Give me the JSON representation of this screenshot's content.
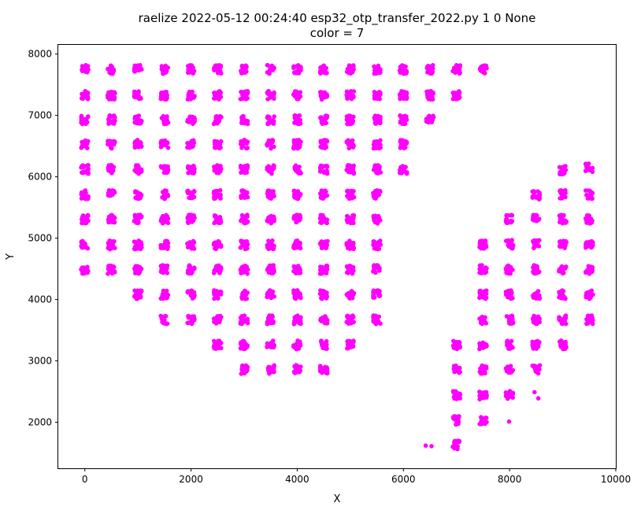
{
  "chart_data": {
    "type": "scatter",
    "title": "raelize 2022-05-12 00:24:40 esp32_otp_transfer_2022.py 1 0 None",
    "subtitle": "color = 7",
    "xlabel": "X",
    "ylabel": "Y",
    "xlim": [
      -500,
      10000
    ],
    "ylim": [
      1250,
      8150
    ],
    "xticks": [
      0,
      2000,
      4000,
      6000,
      8000,
      10000
    ],
    "xtick_labels": [
      "0",
      "2000",
      "4000",
      "6000",
      "8000",
      "10000"
    ],
    "yticks": [
      2000,
      3000,
      4000,
      5000,
      6000,
      7000,
      8000
    ],
    "ytick_labels": [
      "2000",
      "3000",
      "4000",
      "5000",
      "6000",
      "7000",
      "8000"
    ],
    "grid": false,
    "marker_color": "#ff00ff",
    "points_per_cluster": 20,
    "cluster_spread": 70,
    "series": [
      {
        "clusters": [
          [
            0,
            7750
          ],
          [
            500,
            7750
          ],
          [
            1000,
            7750
          ],
          [
            1500,
            7750
          ],
          [
            2000,
            7750
          ],
          [
            2500,
            7750
          ],
          [
            3000,
            7750
          ],
          [
            3500,
            7750
          ],
          [
            4000,
            7750
          ],
          [
            4500,
            7750
          ],
          [
            5000,
            7750
          ],
          [
            5500,
            7750
          ],
          [
            6000,
            7750
          ],
          [
            6500,
            7750
          ],
          [
            7000,
            7750
          ],
          [
            7500,
            7750
          ],
          [
            0,
            7330
          ],
          [
            500,
            7330
          ],
          [
            1000,
            7330
          ],
          [
            1500,
            7330
          ],
          [
            2000,
            7330
          ],
          [
            2500,
            7330
          ],
          [
            3000,
            7330
          ],
          [
            3500,
            7330
          ],
          [
            4000,
            7330
          ],
          [
            4500,
            7330
          ],
          [
            5000,
            7330
          ],
          [
            5500,
            7330
          ],
          [
            6000,
            7330
          ],
          [
            6500,
            7330
          ],
          [
            7000,
            7330
          ],
          [
            0,
            6930
          ],
          [
            500,
            6930
          ],
          [
            1000,
            6930
          ],
          [
            1500,
            6930
          ],
          [
            2000,
            6930
          ],
          [
            2500,
            6930
          ],
          [
            3000,
            6930
          ],
          [
            3500,
            6930
          ],
          [
            4000,
            6930
          ],
          [
            4500,
            6930
          ],
          [
            5000,
            6930
          ],
          [
            5500,
            6930
          ],
          [
            6000,
            6930
          ],
          [
            6500,
            6930
          ],
          [
            0,
            6530
          ],
          [
            500,
            6530
          ],
          [
            1000,
            6530
          ],
          [
            1500,
            6530
          ],
          [
            2000,
            6530
          ],
          [
            2500,
            6530
          ],
          [
            3000,
            6530
          ],
          [
            3500,
            6530
          ],
          [
            4000,
            6530
          ],
          [
            4500,
            6530
          ],
          [
            5000,
            6530
          ],
          [
            5500,
            6530
          ],
          [
            6000,
            6530
          ],
          [
            0,
            6120
          ],
          [
            500,
            6120
          ],
          [
            1000,
            6120
          ],
          [
            1500,
            6120
          ],
          [
            2000,
            6120
          ],
          [
            2500,
            6120
          ],
          [
            3000,
            6120
          ],
          [
            3500,
            6120
          ],
          [
            4000,
            6120
          ],
          [
            4500,
            6120
          ],
          [
            5000,
            6120
          ],
          [
            5500,
            6120
          ],
          [
            6000,
            6120
          ],
          [
            0,
            5710
          ],
          [
            500,
            5710
          ],
          [
            1000,
            5710
          ],
          [
            1500,
            5710
          ],
          [
            2000,
            5710
          ],
          [
            2500,
            5710
          ],
          [
            3000,
            5710
          ],
          [
            3500,
            5710
          ],
          [
            4000,
            5710
          ],
          [
            4500,
            5710
          ],
          [
            5000,
            5710
          ],
          [
            5500,
            5710
          ],
          [
            0,
            5310
          ],
          [
            500,
            5310
          ],
          [
            1000,
            5310
          ],
          [
            1500,
            5310
          ],
          [
            2000,
            5310
          ],
          [
            2500,
            5310
          ],
          [
            3000,
            5310
          ],
          [
            3500,
            5310
          ],
          [
            4000,
            5310
          ],
          [
            4500,
            5310
          ],
          [
            5000,
            5310
          ],
          [
            5500,
            5310
          ],
          [
            0,
            4890
          ],
          [
            500,
            4890
          ],
          [
            1000,
            4890
          ],
          [
            1500,
            4890
          ],
          [
            2000,
            4890
          ],
          [
            2500,
            4890
          ],
          [
            3000,
            4890
          ],
          [
            3500,
            4890
          ],
          [
            4000,
            4890
          ],
          [
            4500,
            4890
          ],
          [
            5000,
            4890
          ],
          [
            5500,
            4890
          ],
          [
            0,
            4490
          ],
          [
            500,
            4490
          ],
          [
            1000,
            4490
          ],
          [
            1500,
            4490
          ],
          [
            2000,
            4490
          ],
          [
            2500,
            4490
          ],
          [
            3000,
            4490
          ],
          [
            3500,
            4490
          ],
          [
            4000,
            4490
          ],
          [
            4500,
            4490
          ],
          [
            5000,
            4490
          ],
          [
            5500,
            4490
          ],
          [
            1000,
            4080
          ],
          [
            1500,
            4080
          ],
          [
            2000,
            4080
          ],
          [
            2500,
            4080
          ],
          [
            3000,
            4080
          ],
          [
            3500,
            4080
          ],
          [
            4000,
            4080
          ],
          [
            4500,
            4080
          ],
          [
            5000,
            4080
          ],
          [
            5500,
            4080
          ],
          [
            1500,
            3670
          ],
          [
            2000,
            3670
          ],
          [
            2500,
            3670
          ],
          [
            3000,
            3670
          ],
          [
            3500,
            3670
          ],
          [
            4000,
            3670
          ],
          [
            4500,
            3670
          ],
          [
            5000,
            3670
          ],
          [
            5500,
            3670
          ],
          [
            2500,
            3260
          ],
          [
            3000,
            3260
          ],
          [
            3500,
            3260
          ],
          [
            4000,
            3260
          ],
          [
            4500,
            3260
          ],
          [
            5000,
            3260
          ],
          [
            3000,
            2860
          ],
          [
            3500,
            2860
          ],
          [
            4000,
            2860
          ],
          [
            4500,
            2860
          ],
          [
            7500,
            4900
          ],
          [
            8000,
            5310
          ],
          [
            8500,
            5700
          ],
          [
            9000,
            6110
          ],
          [
            9500,
            6150
          ],
          [
            9000,
            5710
          ],
          [
            9500,
            5710
          ],
          [
            8500,
            5310
          ],
          [
            9000,
            5310
          ],
          [
            9500,
            5310
          ],
          [
            8000,
            4900
          ],
          [
            8500,
            4900
          ],
          [
            9000,
            4900
          ],
          [
            9500,
            4900
          ],
          [
            7500,
            4490
          ],
          [
            8000,
            4490
          ],
          [
            8500,
            4490
          ],
          [
            9000,
            4490
          ],
          [
            9500,
            4490
          ],
          [
            7500,
            4080
          ],
          [
            8000,
            4080
          ],
          [
            8500,
            4080
          ],
          [
            9000,
            4080
          ],
          [
            9500,
            4080
          ],
          [
            7500,
            3670
          ],
          [
            8000,
            3670
          ],
          [
            8500,
            3670
          ],
          [
            9000,
            3670
          ],
          [
            9500,
            3670
          ],
          [
            7000,
            3260
          ],
          [
            7500,
            3260
          ],
          [
            8000,
            3260
          ],
          [
            8500,
            3260
          ],
          [
            9000,
            3260
          ],
          [
            7000,
            2860
          ],
          [
            7500,
            2860
          ],
          [
            8000,
            2860
          ],
          [
            8500,
            2860
          ],
          [
            7000,
            2440
          ],
          [
            7500,
            2440
          ],
          [
            8000,
            2440
          ],
          [
            7000,
            2030
          ],
          [
            7500,
            2030
          ],
          [
            7000,
            1630
          ]
        ],
        "isolated_points": [
          [
            6420,
            1620
          ],
          [
            6530,
            1610
          ],
          [
            8470,
            2490
          ],
          [
            8540,
            2390
          ],
          [
            7990,
            2010
          ]
        ]
      }
    ]
  }
}
